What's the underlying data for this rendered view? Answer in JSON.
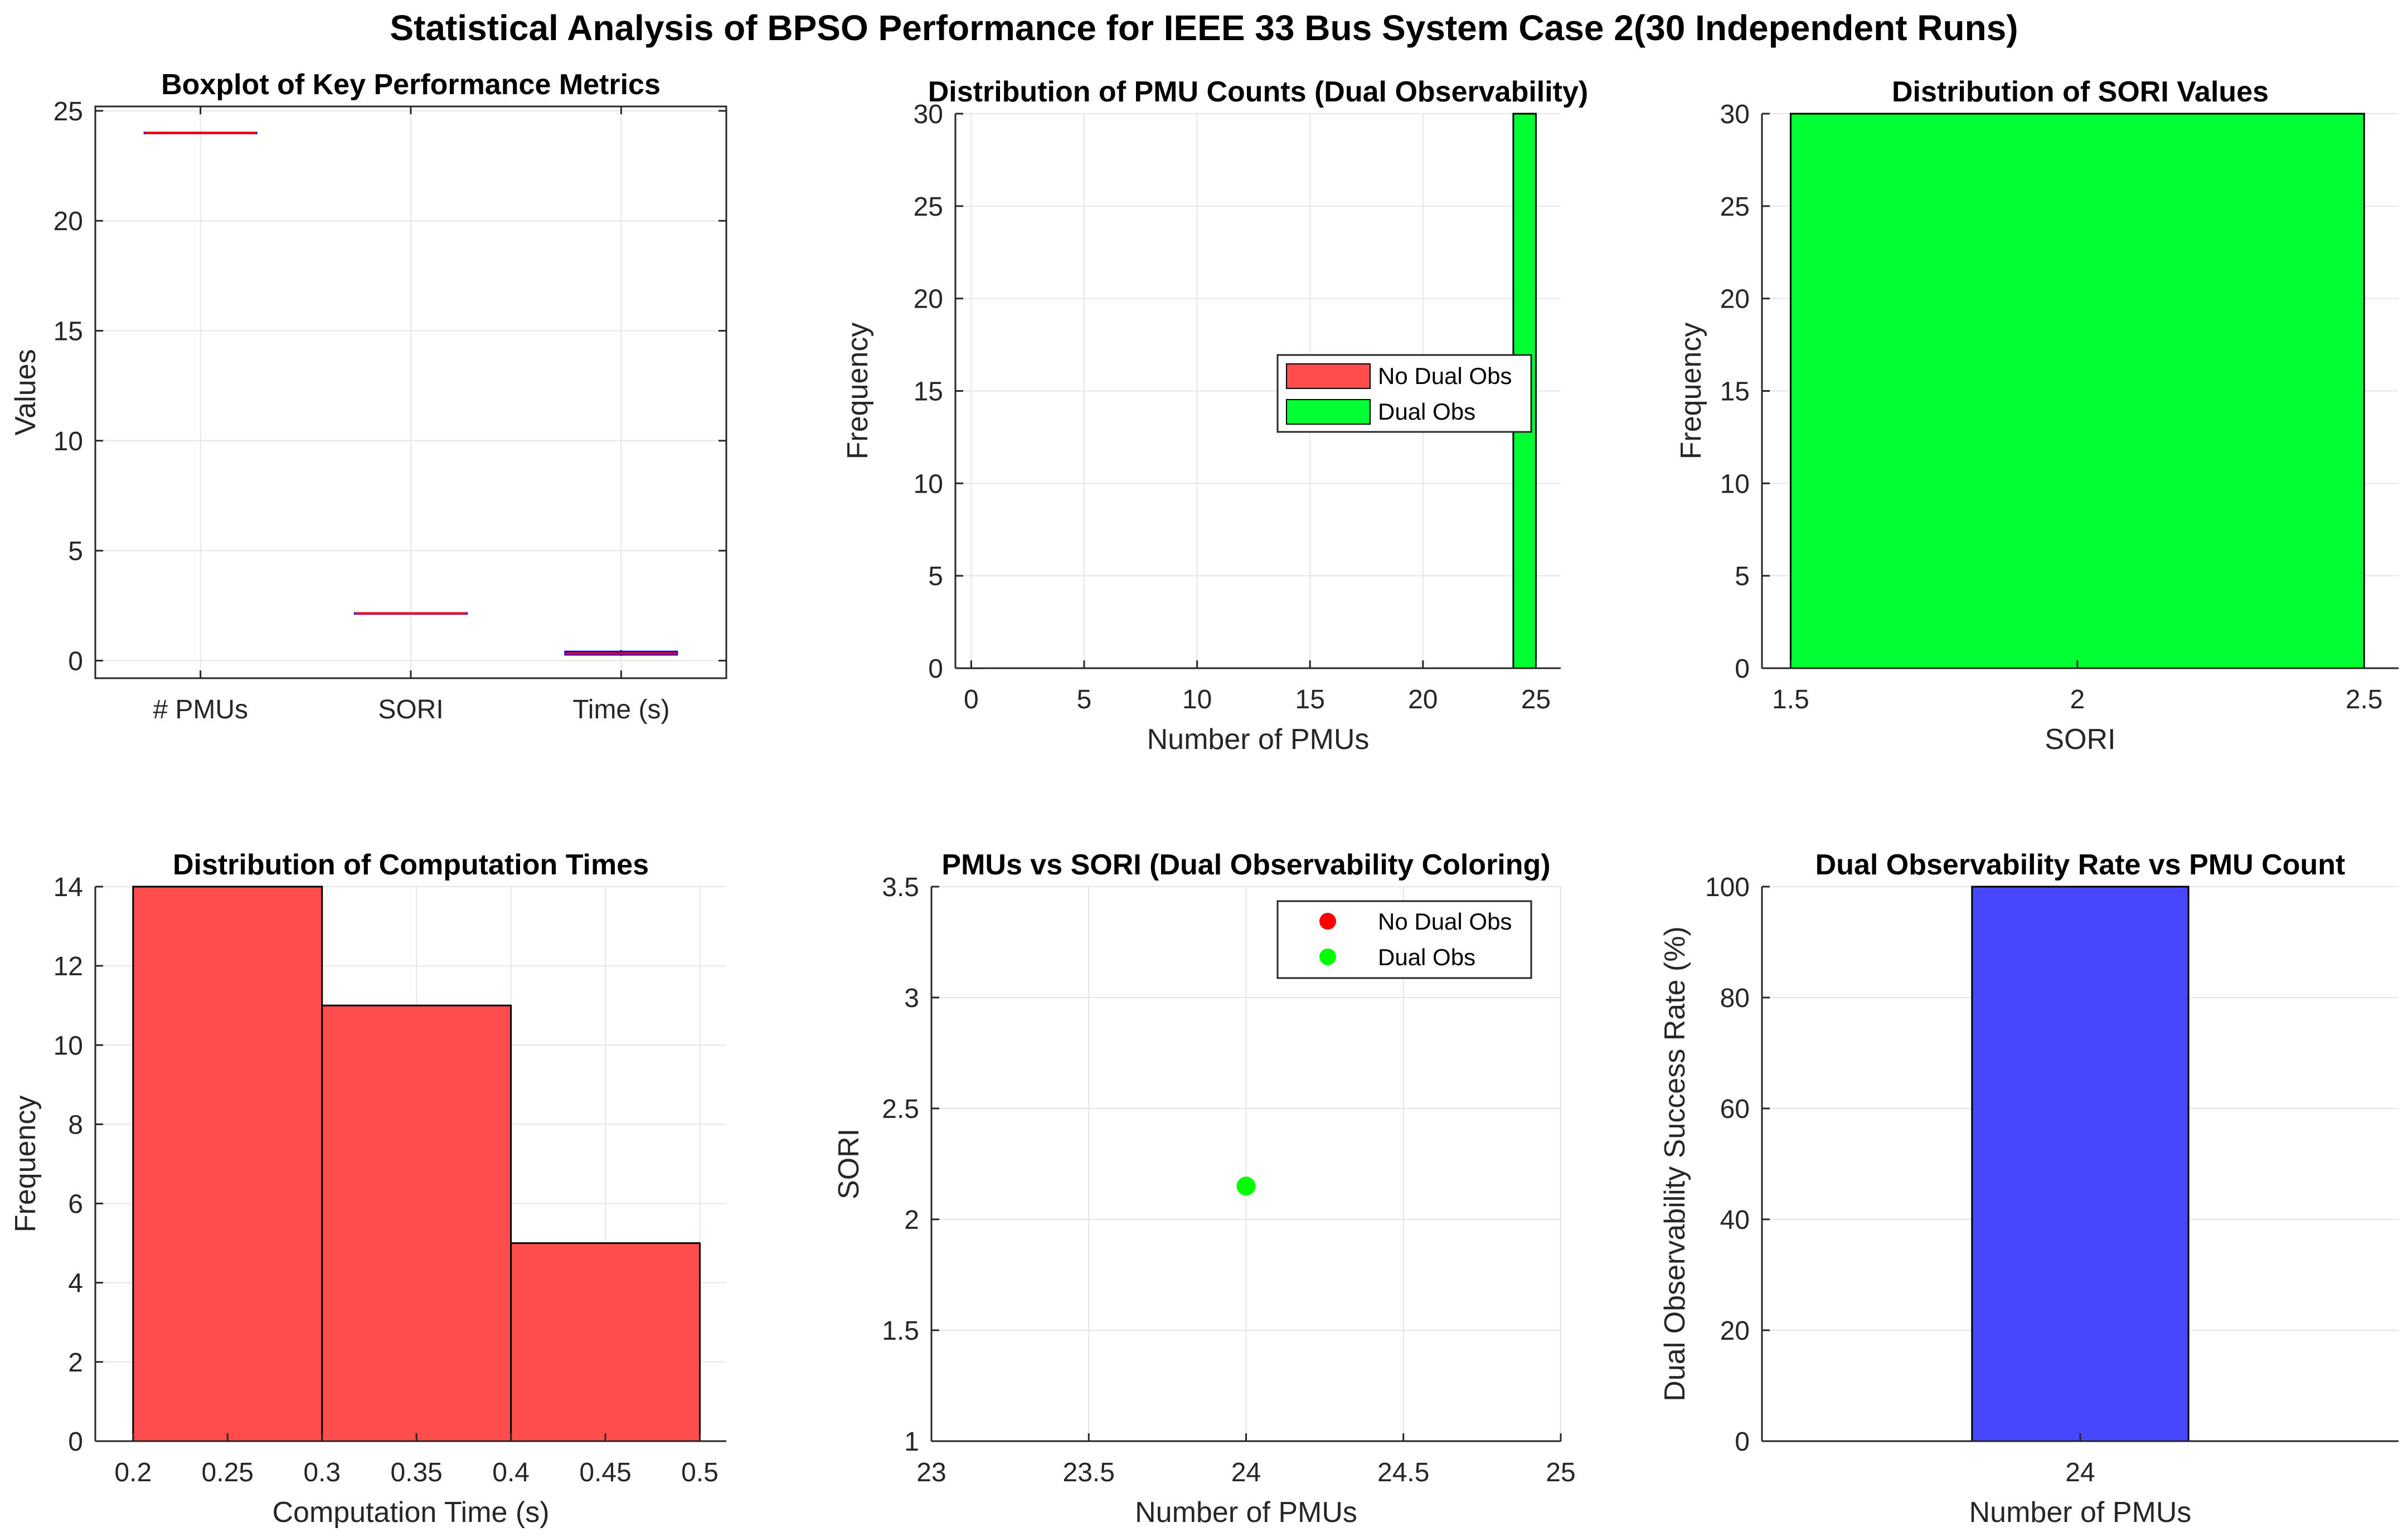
{
  "figure_title": "Statistical Analysis of BPSO Performance for IEEE 33 Bus System Case 2(30 Independent Runs)",
  "chart_data": [
    {
      "id": "p1",
      "type": "box",
      "title": "Boxplot of Key Performance Metrics",
      "xlabel": "",
      "ylabel": "Values",
      "categories": [
        "# PMUs",
        "SORI",
        "Time (s)"
      ],
      "boxes": [
        {
          "q1": 24,
          "median": 24,
          "q3": 24,
          "whisker_low": 24,
          "whisker_high": 24
        },
        {
          "q1": 2.15,
          "median": 2.15,
          "q3": 2.15,
          "whisker_low": 2.15,
          "whisker_high": 2.15
        },
        {
          "q1": 0.28,
          "median": 0.33,
          "q3": 0.4,
          "whisker_low": 0.22,
          "whisker_high": 0.48
        }
      ],
      "ylim": [
        -0.8,
        25.2
      ],
      "yticks": [
        0,
        5,
        10,
        15,
        20,
        25
      ],
      "grid": true,
      "colors": {
        "box": "#0000ff",
        "median": "#ff0000"
      }
    },
    {
      "id": "p2",
      "type": "bar",
      "title": "Distribution of PMU Counts (Dual Observability)",
      "xlabel": "Number of PMUs",
      "ylabel": "Frequency",
      "xlim": [
        -0.7,
        26.1
      ],
      "ylim": [
        0,
        30
      ],
      "xticks": [
        0,
        5,
        10,
        15,
        20,
        25
      ],
      "yticks": [
        0,
        5,
        10,
        15,
        20,
        25,
        30
      ],
      "bar_width": 1,
      "series": [
        {
          "name": "No Dual Obs",
          "color": "#ff4d4d",
          "x": [
            0
          ],
          "values": [
            0
          ]
        },
        {
          "name": "Dual Obs",
          "color": "#00ff33",
          "x": [
            24.5
          ],
          "values": [
            30
          ]
        }
      ],
      "legend": "center-right",
      "grid": true
    },
    {
      "id": "p3",
      "type": "histogram",
      "title": "Distribution of SORI Values",
      "xlabel": "SORI",
      "ylabel": "Frequency",
      "xlim": [
        1.45,
        2.56
      ],
      "ylim": [
        0,
        30
      ],
      "xticks": [
        1.5,
        2,
        2.5
      ],
      "yticks": [
        0,
        5,
        10,
        15,
        20,
        25,
        30
      ],
      "bins": [
        {
          "start": 1.5,
          "end": 2.5,
          "count": 30
        }
      ],
      "color": "#00ff33",
      "grid": true
    },
    {
      "id": "p4",
      "type": "histogram",
      "title": "Distribution of Computation Times",
      "xlabel": "Computation Time (s)",
      "ylabel": "Frequency",
      "xlim": [
        0.18,
        0.514
      ],
      "ylim": [
        0,
        14
      ],
      "xticks": [
        0.2,
        0.25,
        0.3,
        0.35,
        0.4,
        0.45,
        0.5
      ],
      "yticks": [
        0,
        2,
        4,
        6,
        8,
        10,
        12,
        14
      ],
      "bins": [
        {
          "start": 0.2,
          "end": 0.3,
          "count": 14
        },
        {
          "start": 0.3,
          "end": 0.4,
          "count": 11
        },
        {
          "start": 0.4,
          "end": 0.5,
          "count": 5
        }
      ],
      "color": "#ff4d4d",
      "grid": true
    },
    {
      "id": "p5",
      "type": "scatter",
      "title": "PMUs vs SORI (Dual Observability Coloring)",
      "xlabel": "Number of PMUs",
      "ylabel": "SORI",
      "xlim": [
        23,
        25
      ],
      "ylim": [
        1,
        3.5
      ],
      "xticks": [
        23,
        23.5,
        24,
        24.5,
        25
      ],
      "yticks": [
        1,
        1.5,
        2,
        2.5,
        3,
        3.5
      ],
      "series": [
        {
          "name": "No Dual Obs",
          "color": "#ff0000",
          "points": []
        },
        {
          "name": "Dual Obs",
          "color": "#00ff00",
          "points": [
            [
              24,
              2.15
            ]
          ]
        }
      ],
      "legend": "top-right",
      "grid": true
    },
    {
      "id": "p6",
      "type": "bar",
      "title": "Dual Observability Rate vs PMU Count",
      "xlabel": "Number of PMUs",
      "ylabel": "Dual Observability Success Rate (%)",
      "categories": [
        "24"
      ],
      "values": [
        100
      ],
      "xlim": [
        23.5,
        24.5
      ],
      "ylim": [
        0,
        100
      ],
      "yticks": [
        0,
        20,
        40,
        60,
        80,
        100
      ],
      "bar_width": 0.34,
      "color": "#4747ff",
      "grid": true
    }
  ]
}
